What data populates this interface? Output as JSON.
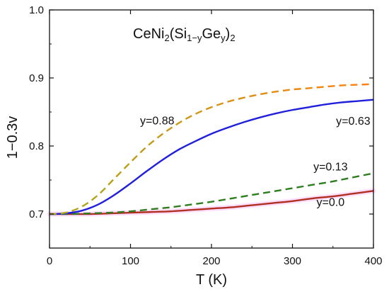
{
  "chart_data": {
    "type": "line",
    "title": {
      "parts": [
        {
          "text": "CeNi",
          "style": "normal"
        },
        {
          "text": "2",
          "style": "sub"
        },
        {
          "text": "(Si",
          "style": "normal"
        },
        {
          "text": "1−y",
          "style": "sub"
        },
        {
          "text": "Ge",
          "style": "normal"
        },
        {
          "text": "y",
          "style": "sub"
        },
        {
          "text": ")",
          "style": "normal"
        },
        {
          "text": "2",
          "style": "sub"
        }
      ]
    },
    "xlabel": "T  (K)",
    "ylabel": "1−0.3v",
    "xlim": [
      0,
      400
    ],
    "ylim": [
      0.65,
      1.0
    ],
    "xticks": [
      0,
      100,
      200,
      300,
      400
    ],
    "xtick_labels": [
      "0",
      "100",
      "200",
      "300",
      "400"
    ],
    "yticks": [
      0.7,
      0.8,
      0.9,
      1.0
    ],
    "ytick_labels": [
      "0.7",
      "0.8",
      "0.9",
      "1.0"
    ],
    "grid": false,
    "series": [
      {
        "name": "y=0.88",
        "style": "dashed",
        "color_start": "#a8a81e",
        "color_end": "#ff7f0e",
        "label_anchor": [
          133,
          0.832
        ],
        "x": [
          0,
          20,
          40,
          60,
          80,
          100,
          120,
          140,
          160,
          180,
          200,
          220,
          240,
          260,
          280,
          300,
          320,
          340,
          360,
          380,
          400
        ],
        "y": [
          0.7,
          0.702,
          0.711,
          0.728,
          0.752,
          0.776,
          0.799,
          0.818,
          0.834,
          0.847,
          0.857,
          0.865,
          0.871,
          0.876,
          0.88,
          0.883,
          0.885,
          0.887,
          0.889,
          0.89,
          0.891
        ]
      },
      {
        "name": "y=0.63",
        "style": "solid",
        "color": "#1f1fdc",
        "label_anchor": [
          375,
          0.831
        ],
        "x": [
          0,
          20,
          40,
          60,
          80,
          100,
          120,
          140,
          160,
          180,
          200,
          220,
          240,
          260,
          280,
          300,
          320,
          340,
          360,
          380,
          400
        ],
        "y": [
          0.7,
          0.701,
          0.705,
          0.714,
          0.728,
          0.745,
          0.763,
          0.78,
          0.795,
          0.807,
          0.818,
          0.827,
          0.835,
          0.842,
          0.848,
          0.853,
          0.857,
          0.861,
          0.864,
          0.866,
          0.868
        ]
      },
      {
        "name": "y=0.13",
        "style": "dashed",
        "color": "#2e7d1e",
        "label_anchor": [
          347,
          0.764
        ],
        "x": [
          0,
          25,
          50,
          75,
          100,
          125,
          150,
          175,
          200,
          225,
          250,
          275,
          300,
          325,
          350,
          375,
          400
        ],
        "y": [
          0.7,
          0.7,
          0.701,
          0.702,
          0.704,
          0.707,
          0.71,
          0.714,
          0.718,
          0.723,
          0.728,
          0.733,
          0.738,
          0.743,
          0.748,
          0.754,
          0.76
        ]
      },
      {
        "name": "y=0.0",
        "style": "solid",
        "color": "#b03020",
        "band_color": "#ff66ff",
        "label_anchor": [
          347,
          0.712
        ],
        "x": [
          0,
          25,
          50,
          75,
          100,
          125,
          150,
          175,
          200,
          225,
          250,
          275,
          300,
          325,
          350,
          375,
          400
        ],
        "y": [
          0.7,
          0.7,
          0.7,
          0.701,
          0.702,
          0.703,
          0.704,
          0.706,
          0.708,
          0.71,
          0.713,
          0.716,
          0.719,
          0.723,
          0.726,
          0.73,
          0.734
        ]
      }
    ]
  }
}
